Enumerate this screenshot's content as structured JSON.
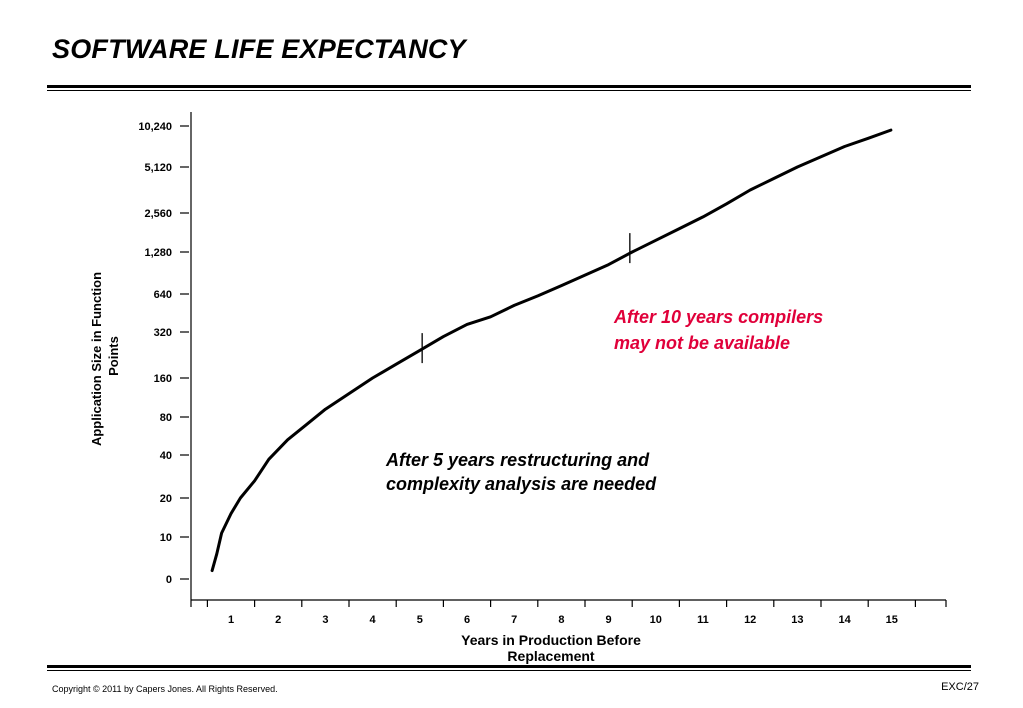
{
  "slide": {
    "title": "SOFTWARE LIFE EXPECTANCY",
    "copyright": "Copyright © 2011 by Capers Jones.  All Rights Reserved.",
    "page_id": "EXC/27"
  },
  "colors": {
    "annotation_red": "#e0003a",
    "text": "#000000"
  },
  "chart_data": {
    "type": "line",
    "title": "",
    "xlabel_lines": [
      "Years in Production Before",
      "Replacement"
    ],
    "ylabel_lines": [
      "Application Size in Function",
      "Points"
    ],
    "x_ticks": [
      1,
      2,
      3,
      4,
      5,
      6,
      7,
      8,
      9,
      10,
      11,
      12,
      13,
      14,
      15
    ],
    "x_range": [
      0.1,
      16.2
    ],
    "y_ticks": [
      "0",
      "10",
      "20",
      "40",
      "80",
      "160",
      "320",
      "640",
      "1,280",
      "2,560",
      "5,120",
      "10,240"
    ],
    "y_scale": "ordinal log2",
    "grid": false,
    "legend": "none",
    "series": [
      {
        "x": [
          0.6,
          0.7,
          0.8,
          1.0,
          1.2,
          1.5,
          1.8,
          2.2,
          2.6,
          3.0,
          3.5,
          4.0,
          4.5,
          5.0,
          5.5,
          6.0,
          6.5,
          7.0,
          7.5,
          8.0,
          8.5,
          9.0,
          9.5,
          10.0,
          10.5,
          11.0,
          11.5,
          12.0,
          12.5,
          13.0,
          13.5,
          14.0,
          14.5,
          14.98
        ],
        "y": [
          0.2,
          0.6,
          1.1,
          1.6,
          2.0,
          2.4,
          2.9,
          3.4,
          3.8,
          4.2,
          4.6,
          5.0,
          5.3,
          5.6,
          5.9,
          6.2,
          6.4,
          6.7,
          6.95,
          7.2,
          7.45,
          7.7,
          8.0,
          8.3,
          8.6,
          8.9,
          9.2,
          9.5,
          9.75,
          10.0,
          10.25,
          10.5,
          10.7,
          10.9
        ]
      }
    ],
    "markers": [
      {
        "x": 5.05,
        "y": 5.65
      },
      {
        "x": 9.45,
        "y": 8.1
      }
    ],
    "annotations": [
      {
        "lines": [
          "After 10 years compilers",
          "may not be available"
        ],
        "color": "#e0003a"
      },
      {
        "lines": [
          "After 5 years restructuring and",
          "complexity analysis are needed"
        ],
        "color": "#000000"
      }
    ]
  }
}
